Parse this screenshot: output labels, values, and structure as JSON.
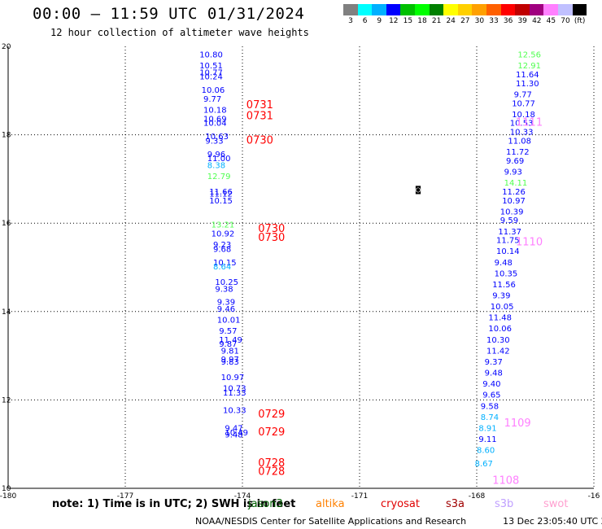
{
  "header": {
    "title": "00:00 – 11:59 UTC 01/31/2024",
    "subtitle": "12 hour collection of altimeter wave heights"
  },
  "legend": {
    "colors": [
      "#808080",
      "#00ffff",
      "#00b0ff",
      "#0000ff",
      "#00c000",
      "#00ff00",
      "#008000",
      "#ffff00",
      "#ffd000",
      "#ffa000",
      "#ff6000",
      "#ff0000",
      "#c00000",
      "#a00080",
      "#ff80ff",
      "#c0c0ff",
      "#000000"
    ],
    "labels": [
      "3",
      "6",
      "9",
      "12",
      "15",
      "18",
      "21",
      "24",
      "27",
      "30",
      "33",
      "36",
      "39",
      "42",
      "45",
      "70",
      "(ft)"
    ]
  },
  "note": {
    "text": "note: 1) Time is in UTC; 2) SWH is in feet"
  },
  "satellites": [
    {
      "name": "jason3",
      "color": "#006000"
    },
    {
      "name": "altika",
      "color": "#ff8000"
    },
    {
      "name": "cryosat",
      "color": "#e00000"
    },
    {
      "name": "s3a",
      "color": "#a00000"
    },
    {
      "name": "s3b",
      "color": "#c0a0ff"
    },
    {
      "name": "swot",
      "color": "#ffa0d0"
    }
  ],
  "footer": {
    "credit": "NOAA/NESDIS Center for Satellite Applications and Research",
    "timestamp": "13 Dec 23:05:40 UTC 2024"
  },
  "chart_data": {
    "type": "scatter",
    "xlim": [
      -180,
      -165
    ],
    "ylim": [
      10,
      20
    ],
    "x_ticks": [
      "-180",
      "-177",
      "-174",
      "-171",
      "-168",
      "-16"
    ],
    "y_ticks": [
      "10",
      "12",
      "14",
      "16",
      "18",
      "20"
    ],
    "grid": true,
    "point_marker": "◙",
    "point": [
      -169.5,
      16.7
    ],
    "pass_labels": [
      {
        "text": "0731",
        "x": -173.9,
        "y": 18.6,
        "color": "#ff0000"
      },
      {
        "text": "0731",
        "x": -173.9,
        "y": 18.35,
        "color": "#ff0000"
      },
      {
        "text": "0730",
        "x": -173.9,
        "y": 17.8,
        "color": "#ff0000"
      },
      {
        "text": "0730",
        "x": -173.6,
        "y": 15.8,
        "color": "#ff0000"
      },
      {
        "text": "0730",
        "x": -173.6,
        "y": 15.6,
        "color": "#ff0000"
      },
      {
        "text": "0729",
        "x": -173.6,
        "y": 11.6,
        "color": "#ff0000"
      },
      {
        "text": "0729",
        "x": -173.6,
        "y": 11.2,
        "color": "#ff0000"
      },
      {
        "text": "0728",
        "x": -173.6,
        "y": 10.5,
        "color": "#ff0000"
      },
      {
        "text": "0728",
        "x": -173.6,
        "y": 10.3,
        "color": "#ff0000"
      },
      {
        "text": "1111",
        "x": -167.0,
        "y": 18.2,
        "color": "#ff80ff"
      },
      {
        "text": "1110",
        "x": -167.0,
        "y": 15.5,
        "color": "#ff80ff"
      },
      {
        "text": "1109",
        "x": -167.3,
        "y": 11.4,
        "color": "#ff80ff"
      },
      {
        "text": "1108",
        "x": -167.6,
        "y": 10.1,
        "color": "#ff80ff"
      }
    ],
    "series": [
      {
        "name": "",
        "track": "western",
        "points": [
          {
            "v": "10.80",
            "x": -175.1,
            "y": 19.75,
            "c": "#0000ff"
          },
          {
            "v": "10.51",
            "x": -175.1,
            "y": 19.5,
            "c": "#0000ff"
          },
          {
            "v": "10.77",
            "x": -175.1,
            "y": 19.35,
            "c": "#0000ff"
          },
          {
            "v": "10.24",
            "x": -175.1,
            "y": 19.25,
            "c": "#0000ff"
          },
          {
            "v": "10.06",
            "x": -175.05,
            "y": 18.95,
            "c": "#0000ff"
          },
          {
            "v": "9.77",
            "x": -175.0,
            "y": 18.75,
            "c": "#0000ff"
          },
          {
            "v": "10.18",
            "x": -175.0,
            "y": 18.5,
            "c": "#0000ff"
          },
          {
            "v": "10.69",
            "x": -175.0,
            "y": 18.3,
            "c": "#0000ff"
          },
          {
            "v": "10.04",
            "x": -175.0,
            "y": 18.2,
            "c": "#0000ff"
          },
          {
            "v": "10.63",
            "x": -174.95,
            "y": 17.9,
            "c": "#0000ff"
          },
          {
            "v": "9.33",
            "x": -174.95,
            "y": 17.8,
            "c": "#0000ff"
          },
          {
            "v": "9.96",
            "x": -174.9,
            "y": 17.5,
            "c": "#0000ff"
          },
          {
            "v": "11.00",
            "x": -174.9,
            "y": 17.4,
            "c": "#0000ff"
          },
          {
            "v": "8.38",
            "x": -174.9,
            "y": 17.25,
            "c": "#00b0ff"
          },
          {
            "v": "12.79",
            "x": -174.9,
            "y": 17.0,
            "c": "#50ff50"
          },
          {
            "v": "11.66",
            "x": -174.85,
            "y": 16.65,
            "c": "#0000ff"
          },
          {
            "v": "11.12",
            "x": -174.85,
            "y": 16.6,
            "c": "#0000ff"
          },
          {
            "v": "10.15",
            "x": -174.85,
            "y": 16.45,
            "c": "#0000ff"
          },
          {
            "v": "13.21",
            "x": -174.8,
            "y": 15.9,
            "c": "#50ff50"
          },
          {
            "v": "10.92",
            "x": -174.8,
            "y": 15.7,
            "c": "#0000ff"
          },
          {
            "v": "9.23",
            "x": -174.75,
            "y": 15.45,
            "c": "#0000ff"
          },
          {
            "v": "9.68",
            "x": -174.75,
            "y": 15.35,
            "c": "#0000ff"
          },
          {
            "v": "10.15",
            "x": -174.75,
            "y": 15.05,
            "c": "#0000ff"
          },
          {
            "v": "8.64",
            "x": -174.75,
            "y": 14.95,
            "c": "#00b0ff"
          },
          {
            "v": "10.25",
            "x": -174.7,
            "y": 14.6,
            "c": "#0000ff"
          },
          {
            "v": "9.38",
            "x": -174.7,
            "y": 14.45,
            "c": "#0000ff"
          },
          {
            "v": "9.39",
            "x": -174.65,
            "y": 14.15,
            "c": "#0000ff"
          },
          {
            "v": "9.46",
            "x": -174.65,
            "y": 14.0,
            "c": "#0000ff"
          },
          {
            "v": "10.01",
            "x": -174.65,
            "y": 13.75,
            "c": "#0000ff"
          },
          {
            "v": "9.57",
            "x": -174.6,
            "y": 13.5,
            "c": "#0000ff"
          },
          {
            "v": "11.49",
            "x": -174.6,
            "y": 13.3,
            "c": "#0000ff"
          },
          {
            "v": "9.87",
            "x": -174.6,
            "y": 13.2,
            "c": "#0000ff"
          },
          {
            "v": "9.81",
            "x": -174.55,
            "y": 13.05,
            "c": "#0000ff"
          },
          {
            "v": "9.97",
            "x": -174.55,
            "y": 12.85,
            "c": "#0000ff"
          },
          {
            "v": "9.83",
            "x": -174.55,
            "y": 12.8,
            "c": "#0000ff"
          },
          {
            "v": "10.97",
            "x": -174.55,
            "y": 12.45,
            "c": "#0000ff"
          },
          {
            "v": "10.73",
            "x": -174.5,
            "y": 12.2,
            "c": "#0000ff"
          },
          {
            "v": "11.33",
            "x": -174.5,
            "y": 12.1,
            "c": "#0000ff"
          },
          {
            "v": "10.33",
            "x": -174.5,
            "y": 11.7,
            "c": "#0000ff"
          },
          {
            "v": "9.47",
            "x": -174.45,
            "y": 11.3,
            "c": "#0000ff"
          },
          {
            "v": "10.49",
            "x": -174.45,
            "y": 11.2,
            "c": "#0000ff"
          },
          {
            "v": "9.48",
            "x": -174.45,
            "y": 11.15,
            "c": "#0000ff"
          }
        ]
      },
      {
        "name": "",
        "track": "eastern",
        "points": [
          {
            "v": "12.56",
            "x": -166.95,
            "y": 19.75,
            "c": "#50ff50"
          },
          {
            "v": "12.91",
            "x": -166.95,
            "y": 19.5,
            "c": "#50ff50"
          },
          {
            "v": "11.64",
            "x": -167.0,
            "y": 19.3,
            "c": "#0000ff"
          },
          {
            "v": "11.30",
            "x": -167.0,
            "y": 19.1,
            "c": "#0000ff"
          },
          {
            "v": "9.77",
            "x": -167.05,
            "y": 18.85,
            "c": "#0000ff"
          },
          {
            "v": "10.77",
            "x": -167.1,
            "y": 18.65,
            "c": "#0000ff"
          },
          {
            "v": "10.18",
            "x": -167.1,
            "y": 18.4,
            "c": "#0000ff"
          },
          {
            "v": "10.53",
            "x": -167.15,
            "y": 18.2,
            "c": "#0000ff"
          },
          {
            "v": "10.33",
            "x": -167.15,
            "y": 18.0,
            "c": "#0000ff"
          },
          {
            "v": "11.08",
            "x": -167.2,
            "y": 17.8,
            "c": "#0000ff"
          },
          {
            "v": "11.72",
            "x": -167.25,
            "y": 17.55,
            "c": "#0000ff"
          },
          {
            "v": "9.69",
            "x": -167.25,
            "y": 17.35,
            "c": "#0000ff"
          },
          {
            "v": "9.93",
            "x": -167.3,
            "y": 17.1,
            "c": "#0000ff"
          },
          {
            "v": "14.11",
            "x": -167.3,
            "y": 16.85,
            "c": "#50ff50"
          },
          {
            "v": "11.26",
            "x": -167.35,
            "y": 16.65,
            "c": "#0000ff"
          },
          {
            "v": "10.97",
            "x": -167.35,
            "y": 16.45,
            "c": "#0000ff"
          },
          {
            "v": "10.39",
            "x": -167.4,
            "y": 16.2,
            "c": "#0000ff"
          },
          {
            "v": "9.59",
            "x": -167.4,
            "y": 16.0,
            "c": "#0000ff"
          },
          {
            "v": "11.37",
            "x": -167.45,
            "y": 15.75,
            "c": "#0000ff"
          },
          {
            "v": "11.75",
            "x": -167.5,
            "y": 15.55,
            "c": "#0000ff"
          },
          {
            "v": "10.14",
            "x": -167.5,
            "y": 15.3,
            "c": "#0000ff"
          },
          {
            "v": "9.48",
            "x": -167.55,
            "y": 15.05,
            "c": "#0000ff"
          },
          {
            "v": "10.35",
            "x": -167.55,
            "y": 14.8,
            "c": "#0000ff"
          },
          {
            "v": "11.56",
            "x": -167.6,
            "y": 14.55,
            "c": "#0000ff"
          },
          {
            "v": "9.39",
            "x": -167.6,
            "y": 14.3,
            "c": "#0000ff"
          },
          {
            "v": "10.05",
            "x": -167.65,
            "y": 14.05,
            "c": "#0000ff"
          },
          {
            "v": "11.48",
            "x": -167.7,
            "y": 13.8,
            "c": "#0000ff"
          },
          {
            "v": "10.06",
            "x": -167.7,
            "y": 13.55,
            "c": "#0000ff"
          },
          {
            "v": "10.30",
            "x": -167.75,
            "y": 13.3,
            "c": "#0000ff"
          },
          {
            "v": "11.42",
            "x": -167.75,
            "y": 13.05,
            "c": "#0000ff"
          },
          {
            "v": "9.37",
            "x": -167.8,
            "y": 12.8,
            "c": "#0000ff"
          },
          {
            "v": "9.48",
            "x": -167.8,
            "y": 12.55,
            "c": "#0000ff"
          },
          {
            "v": "9.40",
            "x": -167.85,
            "y": 12.3,
            "c": "#0000ff"
          },
          {
            "v": "9.65",
            "x": -167.85,
            "y": 12.05,
            "c": "#0000ff"
          },
          {
            "v": "9.58",
            "x": -167.9,
            "y": 11.8,
            "c": "#0000ff"
          },
          {
            "v": "8.74",
            "x": -167.9,
            "y": 11.55,
            "c": "#00b0ff"
          },
          {
            "v": "8.91",
            "x": -167.95,
            "y": 11.3,
            "c": "#00b0ff"
          },
          {
            "v": "9.11",
            "x": -167.95,
            "y": 11.05,
            "c": "#0000ff"
          },
          {
            "v": "8.60",
            "x": -168.0,
            "y": 10.8,
            "c": "#00b0ff"
          },
          {
            "v": "8.67",
            "x": -168.05,
            "y": 10.5,
            "c": "#00b0ff"
          }
        ]
      }
    ]
  }
}
